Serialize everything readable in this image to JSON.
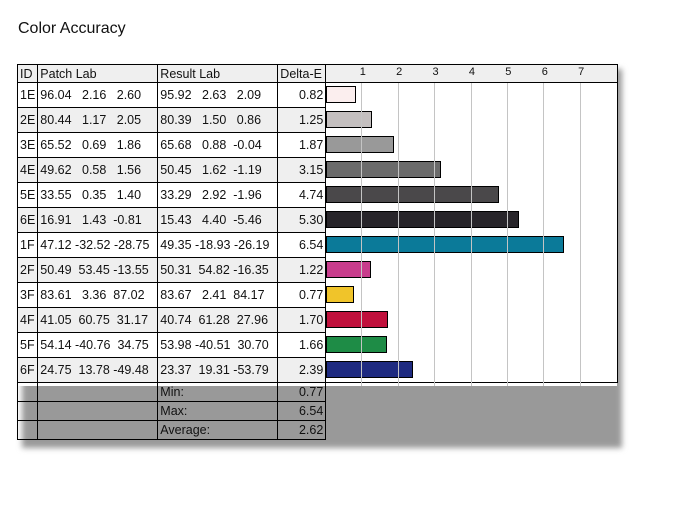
{
  "title": "Color Accuracy",
  "headers": {
    "id": "ID",
    "patch": "Patch Lab",
    "result": "Result Lab",
    "delta": "Delta-E"
  },
  "chart_data": {
    "type": "bar",
    "orientation": "horizontal",
    "xlim": [
      0,
      8
    ],
    "ticks": [
      "1",
      "2",
      "3",
      "4",
      "5",
      "6",
      "7"
    ],
    "grid": true
  },
  "rows": [
    {
      "id": "1E",
      "patch": "96.04   2.16   2.60",
      "result": "95.92   2.63   2.09",
      "delta": "0.82",
      "value": 0.82,
      "color": "#fbeeee"
    },
    {
      "id": "2E",
      "patch": "80.44   1.17   2.05",
      "result": "80.39   1.50   0.86",
      "delta": "1.25",
      "value": 1.25,
      "color": "#c4bfbf"
    },
    {
      "id": "3E",
      "patch": "65.52   0.69   1.86",
      "result": "65.68   0.88  -0.04",
      "delta": "1.87",
      "value": 1.87,
      "color": "#999999"
    },
    {
      "id": "4E",
      "patch": "49.62   0.58   1.56",
      "result": "50.45   1.62  -1.19",
      "delta": "3.15",
      "value": 3.15,
      "color": "#6b6b6b"
    },
    {
      "id": "5E",
      "patch": "33.55   0.35   1.40",
      "result": "33.29   2.92  -1.96",
      "delta": "4.74",
      "value": 4.74,
      "color": "#4a484a"
    },
    {
      "id": "6E",
      "patch": "16.91   1.43  -0.81",
      "result": "15.43   4.40  -5.46",
      "delta": "5.30",
      "value": 5.3,
      "color": "#28252a"
    },
    {
      "id": "1F",
      "patch": "47.12 -32.52 -28.75",
      "result": "49.35 -18.93 -26.19",
      "delta": "6.54",
      "value": 6.54,
      "color": "#0b7a99"
    },
    {
      "id": "2F",
      "patch": "50.49  53.45 -13.55",
      "result": "50.31  54.82 -16.35",
      "delta": "1.22",
      "value": 1.22,
      "color": "#c83c8c"
    },
    {
      "id": "3F",
      "patch": "83.61   3.36  87.02",
      "result": "83.67   2.41  84.17",
      "delta": "0.77",
      "value": 0.77,
      "color": "#f0c42a"
    },
    {
      "id": "4F",
      "patch": "41.05  60.75  31.17",
      "result": "40.74  61.28  27.96",
      "delta": "1.70",
      "value": 1.7,
      "color": "#c0103c"
    },
    {
      "id": "5F",
      "patch": "54.14 -40.76  34.75",
      "result": "53.98 -40.51  30.70",
      "delta": "1.66",
      "value": 1.66,
      "color": "#1e8c46"
    },
    {
      "id": "6F",
      "patch": "24.75  13.78 -49.48",
      "result": "23.37  19.31 -53.79",
      "delta": "2.39",
      "value": 2.39,
      "color": "#1e2a80"
    }
  ],
  "summary": [
    {
      "label": "Min:",
      "value": "0.77"
    },
    {
      "label": "Max:",
      "value": "6.54"
    },
    {
      "label": "Average:",
      "value": "2.62"
    }
  ]
}
